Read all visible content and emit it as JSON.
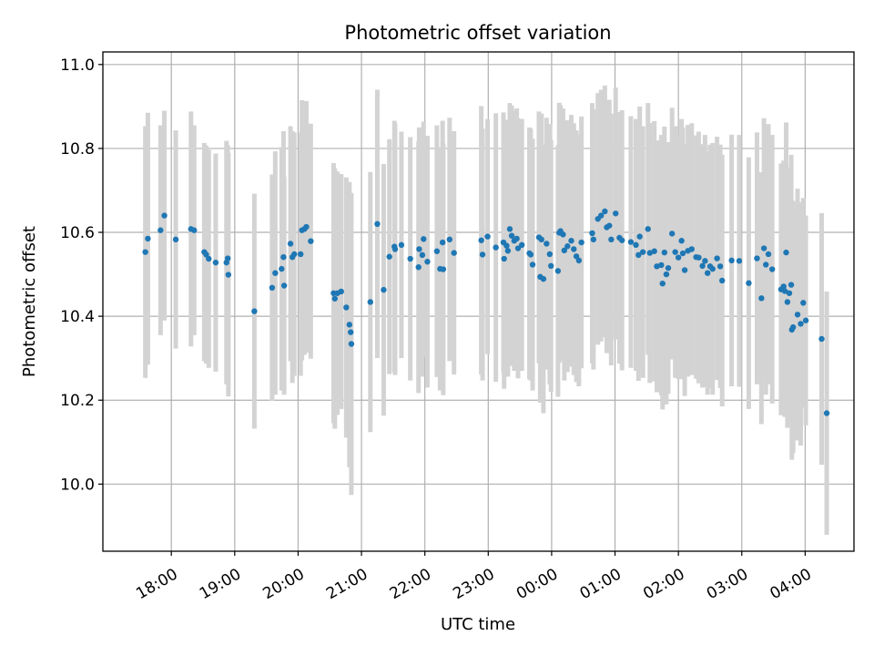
{
  "chart_data": {
    "type": "scatter",
    "title": "Photometric offset variation",
    "xlabel": "UTC time",
    "ylabel": "Photometric offset",
    "grid": true,
    "x_unit": "hours since 18:00 UTC",
    "xlim": [
      -1.08,
      10.77
    ],
    "ylim": [
      9.84,
      11.03
    ],
    "xticks": [
      {
        "v": 0,
        "label": "18:00"
      },
      {
        "v": 1,
        "label": "19:00"
      },
      {
        "v": 2,
        "label": "20:00"
      },
      {
        "v": 3,
        "label": "21:00"
      },
      {
        "v": 4,
        "label": "22:00"
      },
      {
        "v": 5,
        "label": "23:00"
      },
      {
        "v": 6,
        "label": "00:00"
      },
      {
        "v": 7,
        "label": "01:00"
      },
      {
        "v": 8,
        "label": "02:00"
      },
      {
        "v": 9,
        "label": "03:00"
      },
      {
        "v": 10,
        "label": "04:00"
      }
    ],
    "yticks": [
      {
        "v": 10.0,
        "label": "10.0"
      },
      {
        "v": 10.2,
        "label": "10.2"
      },
      {
        "v": 10.4,
        "label": "10.4"
      },
      {
        "v": 10.6,
        "label": "10.6"
      },
      {
        "v": 10.8,
        "label": "10.8"
      },
      {
        "v": 11.0,
        "label": "11.0"
      }
    ],
    "series": [
      {
        "name": "offset",
        "color": "#1f77b4",
        "errorbar_color": "#d3d3d3",
        "points": [
          [
            -0.41,
            10.553,
            0.3
          ],
          [
            -0.37,
            10.585,
            0.3
          ],
          [
            -0.17,
            10.605,
            0.25
          ],
          [
            -0.11,
            10.64,
            0.25
          ],
          [
            0.07,
            10.583,
            0.26
          ],
          [
            0.31,
            10.608,
            0.28
          ],
          [
            0.36,
            10.605,
            0.25
          ],
          [
            0.52,
            10.553,
            0.26
          ],
          [
            0.55,
            10.547,
            0.26
          ],
          [
            0.59,
            10.537,
            0.26
          ],
          [
            0.7,
            10.528,
            0.26
          ],
          [
            0.87,
            10.528,
            0.29
          ],
          [
            0.89,
            10.538,
            0.27
          ],
          [
            0.9,
            10.499,
            0.29
          ],
          [
            1.31,
            10.412,
            0.28
          ],
          [
            1.59,
            10.468,
            0.27
          ],
          [
            1.64,
            10.503,
            0.29
          ],
          [
            1.74,
            10.513,
            0.29
          ],
          [
            1.77,
            10.541,
            0.3
          ],
          [
            1.78,
            10.473,
            0.26
          ],
          [
            1.88,
            10.573,
            0.28
          ],
          [
            1.91,
            10.541,
            0.3
          ],
          [
            1.94,
            10.548,
            0.29
          ],
          [
            2.04,
            10.548,
            0.29
          ],
          [
            2.06,
            10.605,
            0.31
          ],
          [
            2.1,
            10.608,
            0.3
          ],
          [
            2.13,
            10.613,
            0.3
          ],
          [
            2.2,
            10.579,
            0.28
          ],
          [
            2.56,
            10.455,
            0.31
          ],
          [
            2.58,
            10.442,
            0.31
          ],
          [
            2.62,
            10.455,
            0.29
          ],
          [
            2.68,
            10.459,
            0.28
          ],
          [
            2.76,
            10.421,
            0.31
          ],
          [
            2.81,
            10.38,
            0.34
          ],
          [
            2.83,
            10.362,
            0.32
          ],
          [
            2.84,
            10.334,
            0.36
          ],
          [
            3.14,
            10.434,
            0.31
          ],
          [
            3.25,
            10.62,
            0.32
          ],
          [
            3.35,
            10.463,
            0.3
          ],
          [
            3.44,
            10.542,
            0.28
          ],
          [
            3.52,
            10.566,
            0.3
          ],
          [
            3.53,
            10.56,
            0.3
          ],
          [
            3.63,
            10.57,
            0.27
          ],
          [
            3.77,
            10.537,
            0.29
          ],
          [
            3.9,
            10.517,
            0.3
          ],
          [
            3.91,
            10.56,
            0.29
          ],
          [
            3.96,
            10.546,
            0.29
          ],
          [
            3.98,
            10.584,
            0.28
          ],
          [
            4.04,
            10.53,
            0.3
          ],
          [
            4.19,
            10.555,
            0.3
          ],
          [
            4.24,
            10.513,
            0.29
          ],
          [
            4.28,
            10.576,
            0.29
          ],
          [
            4.29,
            10.512,
            0.3
          ],
          [
            4.39,
            10.583,
            0.29
          ],
          [
            4.46,
            10.551,
            0.29
          ],
          [
            4.89,
            10.581,
            0.32
          ],
          [
            4.91,
            10.547,
            0.3
          ],
          [
            4.99,
            10.59,
            0.28
          ],
          [
            5.12,
            10.564,
            0.32
          ],
          [
            5.24,
            10.576,
            0.31
          ],
          [
            5.25,
            10.537,
            0.31
          ],
          [
            5.29,
            10.568,
            0.3
          ],
          [
            5.31,
            10.556,
            0.3
          ],
          [
            5.34,
            10.608,
            0.3
          ],
          [
            5.37,
            10.592,
            0.31
          ],
          [
            5.41,
            10.58,
            0.31
          ],
          [
            5.45,
            10.585,
            0.31
          ],
          [
            5.47,
            10.562,
            0.31
          ],
          [
            5.53,
            10.57,
            0.3
          ],
          [
            5.65,
            10.55,
            0.3
          ],
          [
            5.67,
            10.547,
            0.3
          ],
          [
            5.7,
            10.523,
            0.3
          ],
          [
            5.8,
            10.588,
            0.3
          ],
          [
            5.82,
            10.494,
            0.3
          ],
          [
            5.84,
            10.583,
            0.3
          ],
          [
            5.87,
            10.489,
            0.32
          ],
          [
            5.92,
            10.573,
            0.3
          ],
          [
            5.97,
            10.548,
            0.31
          ],
          [
            5.99,
            10.52,
            0.3
          ],
          [
            6.1,
            10.508,
            0.3
          ],
          [
            6.12,
            10.599,
            0.31
          ],
          [
            6.14,
            10.603,
            0.3
          ],
          [
            6.18,
            10.595,
            0.3
          ],
          [
            6.2,
            10.557,
            0.31
          ],
          [
            6.25,
            10.567,
            0.3
          ],
          [
            6.31,
            10.58,
            0.3
          ],
          [
            6.35,
            10.56,
            0.3
          ],
          [
            6.39,
            10.543,
            0.3
          ],
          [
            6.43,
            10.533,
            0.3
          ],
          [
            6.47,
            10.576,
            0.3
          ],
          [
            6.64,
            10.598,
            0.31
          ],
          [
            6.66,
            10.583,
            0.31
          ],
          [
            6.73,
            10.632,
            0.3
          ],
          [
            6.78,
            10.64,
            0.3
          ],
          [
            6.84,
            10.65,
            0.3
          ],
          [
            6.87,
            10.612,
            0.3
          ],
          [
            6.91,
            10.616,
            0.3
          ],
          [
            6.94,
            10.583,
            0.3
          ],
          [
            7.01,
            10.645,
            0.3
          ],
          [
            7.07,
            10.587,
            0.3
          ],
          [
            7.11,
            10.581,
            0.31
          ],
          [
            7.25,
            10.577,
            0.3
          ],
          [
            7.33,
            10.57,
            0.3
          ],
          [
            7.37,
            10.546,
            0.3
          ],
          [
            7.39,
            10.59,
            0.31
          ],
          [
            7.44,
            10.553,
            0.3
          ],
          [
            7.52,
            10.608,
            0.3
          ],
          [
            7.55,
            10.551,
            0.31
          ],
          [
            7.62,
            10.555,
            0.31
          ],
          [
            7.66,
            10.519,
            0.3
          ],
          [
            7.73,
            10.522,
            0.31
          ],
          [
            7.75,
            10.478,
            0.3
          ],
          [
            7.78,
            10.552,
            0.3
          ],
          [
            7.81,
            10.5,
            0.31
          ],
          [
            7.84,
            10.515,
            0.3
          ],
          [
            7.9,
            10.597,
            0.3
          ],
          [
            7.95,
            10.553,
            0.3
          ],
          [
            8.0,
            10.54,
            0.29
          ],
          [
            8.05,
            10.58,
            0.29
          ],
          [
            8.07,
            10.55,
            0.3
          ],
          [
            8.1,
            10.51,
            0.3
          ],
          [
            8.15,
            10.556,
            0.3
          ],
          [
            8.21,
            10.56,
            0.3
          ],
          [
            8.28,
            10.541,
            0.29
          ],
          [
            8.32,
            10.54,
            0.3
          ],
          [
            8.38,
            10.52,
            0.29
          ],
          [
            8.42,
            10.532,
            0.3
          ],
          [
            8.46,
            10.503,
            0.29
          ],
          [
            8.5,
            10.519,
            0.29
          ],
          [
            8.54,
            10.513,
            0.3
          ],
          [
            8.61,
            10.538,
            0.29
          ],
          [
            8.66,
            10.519,
            0.29
          ],
          [
            8.69,
            10.485,
            0.3
          ],
          [
            8.84,
            10.533,
            0.3
          ],
          [
            8.96,
            10.532,
            0.3
          ],
          [
            9.11,
            10.479,
            0.3
          ],
          [
            9.24,
            10.538,
            0.3
          ],
          [
            9.31,
            10.443,
            0.3
          ],
          [
            9.35,
            10.562,
            0.31
          ],
          [
            9.38,
            10.523,
            0.31
          ],
          [
            9.42,
            10.548,
            0.31
          ],
          [
            9.48,
            10.512,
            0.32
          ],
          [
            9.62,
            10.464,
            0.3
          ],
          [
            9.66,
            10.471,
            0.3
          ],
          [
            9.68,
            10.46,
            0.3
          ],
          [
            9.7,
            10.552,
            0.31
          ],
          [
            9.72,
            10.434,
            0.3
          ],
          [
            9.75,
            10.455,
            0.3
          ],
          [
            9.78,
            10.475,
            0.31
          ],
          [
            9.79,
            10.368,
            0.31
          ],
          [
            9.81,
            10.374,
            0.3
          ],
          [
            9.88,
            10.404,
            0.3
          ],
          [
            9.93,
            10.382,
            0.29
          ],
          [
            9.97,
            10.432,
            0.25
          ],
          [
            10.01,
            10.39,
            0.25
          ],
          [
            10.26,
            10.346,
            0.3
          ],
          [
            10.34,
            10.169,
            0.29
          ]
        ]
      }
    ]
  }
}
